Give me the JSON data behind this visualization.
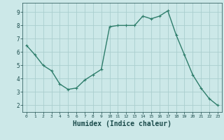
{
  "x": [
    0,
    1,
    2,
    3,
    4,
    5,
    6,
    7,
    8,
    9,
    10,
    11,
    12,
    13,
    14,
    15,
    16,
    17,
    18,
    19,
    20,
    21,
    22,
    23
  ],
  "y": [
    6.5,
    5.8,
    5.0,
    4.6,
    3.6,
    3.2,
    3.3,
    3.9,
    4.3,
    4.7,
    7.9,
    8.0,
    8.0,
    8.0,
    8.7,
    8.5,
    8.7,
    9.1,
    7.3,
    5.8,
    4.3,
    3.3,
    2.5,
    2.0
  ],
  "line_color": "#2E7D6B",
  "marker": "+",
  "marker_size": 3,
  "linewidth": 1.0,
  "xlabel": "Humidex (Indice chaleur)",
  "xlabel_fontsize": 7,
  "bg_color": "#CCE8E8",
  "grid_color": "#AACECE",
  "tick_color": "#1A4A4A",
  "xlim": [
    -0.5,
    23.5
  ],
  "ylim": [
    1.5,
    9.7
  ],
  "yticks": [
    2,
    3,
    4,
    5,
    6,
    7,
    8,
    9
  ],
  "xticks": [
    0,
    1,
    2,
    3,
    4,
    5,
    6,
    7,
    8,
    9,
    10,
    11,
    12,
    13,
    14,
    15,
    16,
    17,
    18,
    19,
    20,
    21,
    22,
    23
  ]
}
